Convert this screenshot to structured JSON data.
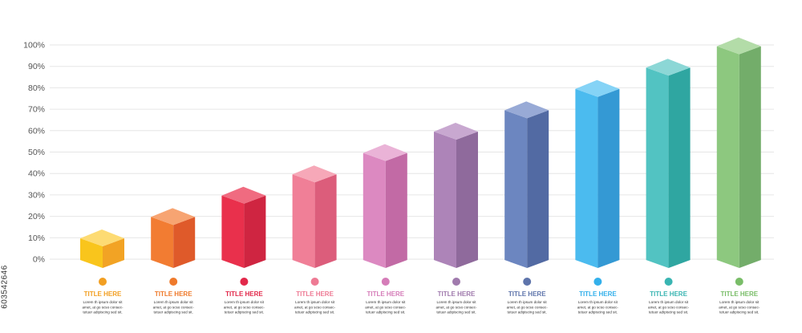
{
  "side_id": "603542646",
  "chart_data": {
    "type": "bar",
    "style": "3d-columns",
    "yticks": [
      "0%",
      "10%",
      "20%",
      "30%",
      "40%",
      "50%",
      "60%",
      "70%",
      "80%",
      "90%",
      "100%"
    ],
    "ylim": [
      0,
      100
    ],
    "grid": true,
    "categories": [
      "TITLE HERE",
      "TITLE HERE",
      "TITLE HERE",
      "TITLE HERE",
      "TITLE HERE",
      "TITLE HERE",
      "TITLE HERE",
      "TITLE HERE",
      "TITLE HERE",
      "TITLE HERE"
    ],
    "values": [
      10,
      20,
      30,
      40,
      50,
      60,
      70,
      80,
      90,
      100
    ],
    "descriptions": [
      [
        "Lorem th ipsum dolor sit",
        "amet, at go scso consec-",
        "tetuer adipiscing sed sit."
      ],
      [
        "Lorem th ipsum dolor sit",
        "amet, at go scso consec-",
        "tetuer adipiscing sed sit."
      ],
      [
        "Lorem th ipsum dolor sit",
        "amet, at go scso consec-",
        "tetuer adipiscing sed sit."
      ],
      [
        "Lorem th ipsum dolor sit",
        "amet, at go scso consec-",
        "tetuer adipiscing sed sit."
      ],
      [
        "Lorem th ipsum dolor sit",
        "amet, at go scso consec-",
        "tetuer adipiscing sed sit."
      ],
      [
        "Lorem th ipsum dolor sit",
        "amet, at go scso consec-",
        "tetuer adipiscing sed sit."
      ],
      [
        "Lorem th ipsum dolor sit",
        "amet, at go scso consec-",
        "tetuer adipiscing sed sit."
      ],
      [
        "Lorem th ipsum dolor sit",
        "amet, at go scso consec-",
        "tetuer adipiscing sed sit."
      ],
      [
        "Lorem th ipsum dolor sit",
        "amet, at go scso consec-",
        "tetuer adipiscing sed sit."
      ],
      [
        "Lorem th ipsum dolor sit",
        "amet, at go scso consec-",
        "tetuer adipiscing sed sit."
      ]
    ],
    "colors": [
      {
        "front": "#f9c51c",
        "side": "#f2a324",
        "top": "#fddb73",
        "label": "#f29f22"
      },
      {
        "front": "#f27c32",
        "side": "#df5a2a",
        "top": "#f7a472",
        "label": "#ef7a2b"
      },
      {
        "front": "#e9304c",
        "side": "#cf2541",
        "top": "#f06b80",
        "label": "#e2284a"
      },
      {
        "front": "#f07f97",
        "side": "#dc5d7b",
        "top": "#f6a8b8",
        "label": "#ee7a94"
      },
      {
        "front": "#dc89c1",
        "side": "#c26aa5",
        "top": "#eab3d7",
        "label": "#d57cb8"
      },
      {
        "front": "#ad84b8",
        "side": "#8f6a9c",
        "top": "#c8a8d0",
        "label": "#a07aad"
      },
      {
        "front": "#6c86c0",
        "side": "#526aa3",
        "top": "#98aad6",
        "label": "#5e74ab"
      },
      {
        "front": "#4bbbef",
        "side": "#3499d4",
        "top": "#85d3f6",
        "label": "#33b0eb"
      },
      {
        "front": "#52c3c2",
        "side": "#2fa6a1",
        "top": "#8cd7d6",
        "label": "#39b5b2"
      },
      {
        "front": "#8dc87f",
        "side": "#73ad6a",
        "top": "#b3dca8",
        "label": "#79bd68"
      }
    ]
  }
}
